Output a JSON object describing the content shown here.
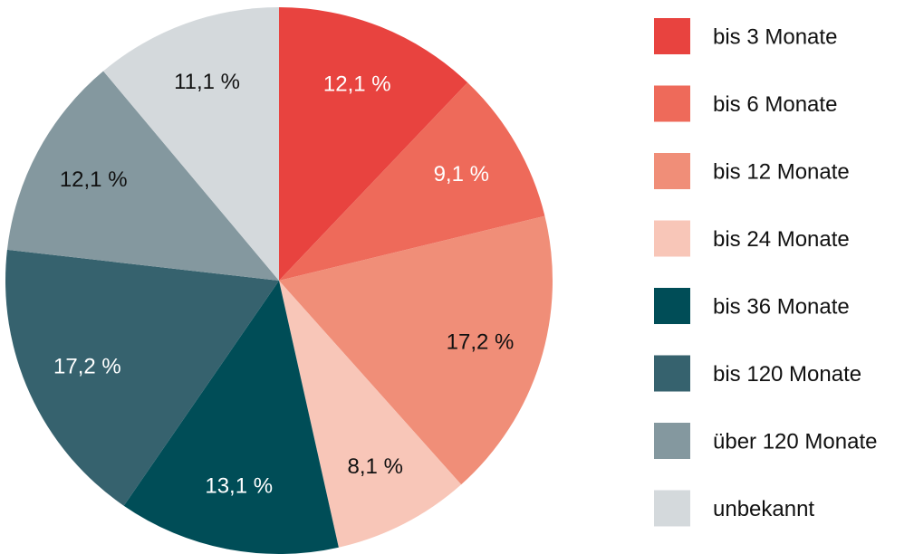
{
  "chart_data": {
    "type": "pie",
    "categories": [
      "bis 3 Monate",
      "bis 6 Monate",
      "bis 12 Monate",
      "bis 24 Monate",
      "bis 36 Monate",
      "bis 120 Monate",
      "über 120 Monate",
      "unbekannt"
    ],
    "values": [
      12.1,
      9.1,
      17.2,
      8.1,
      13.1,
      17.2,
      12.1,
      11.1
    ],
    "value_labels": [
      "12,1 %",
      "9,1 %",
      "17,2 %",
      "8,1 %",
      "13,1 %",
      "17,2 %",
      "12,1 %",
      "11,1 %"
    ],
    "colors": [
      "#e8433f",
      "#ee6a5a",
      "#f08e78",
      "#f8c6b8",
      "#004d57",
      "#36626e",
      "#84989f",
      "#d4d9dc"
    ],
    "legend": "right"
  }
}
